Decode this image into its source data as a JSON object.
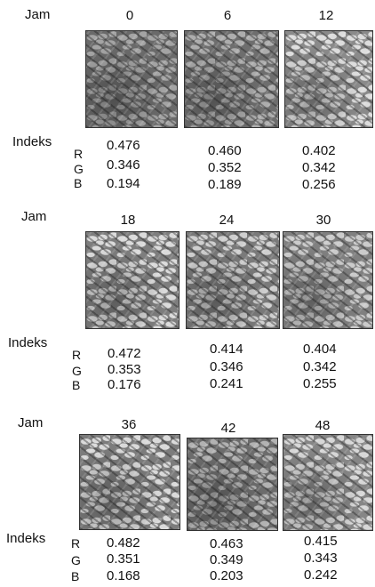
{
  "labels": {
    "time": "Jam",
    "index": "Indeks"
  },
  "channels": [
    "R",
    "G",
    "B"
  ],
  "panels": [
    {
      "hours": [
        "0",
        "6",
        "12"
      ],
      "values": [
        {
          "R": "0.476",
          "G": "0.346",
          "B": "0.194"
        },
        {
          "R": "0.460",
          "G": "0.352",
          "B": "0.189"
        },
        {
          "R": "0.402",
          "G": "0.342",
          "B": "0.256"
        }
      ]
    },
    {
      "hours": [
        "18",
        "24",
        "30"
      ],
      "values": [
        {
          "R": "0.472",
          "G": "0.353",
          "B": "0.176"
        },
        {
          "R": "0.414",
          "G": "0.346",
          "B": "0.241"
        },
        {
          "R": "0.404",
          "G": "0.342",
          "B": "0.255"
        }
      ]
    },
    {
      "hours": [
        "36",
        "42",
        "48"
      ],
      "values": [
        {
          "R": "0.482",
          "G": "0.351",
          "B": "0.168"
        },
        {
          "R": "0.463",
          "G": "0.349",
          "B": "0.203"
        },
        {
          "R": "0.415",
          "G": "0.343",
          "B": "0.242"
        }
      ]
    }
  ]
}
